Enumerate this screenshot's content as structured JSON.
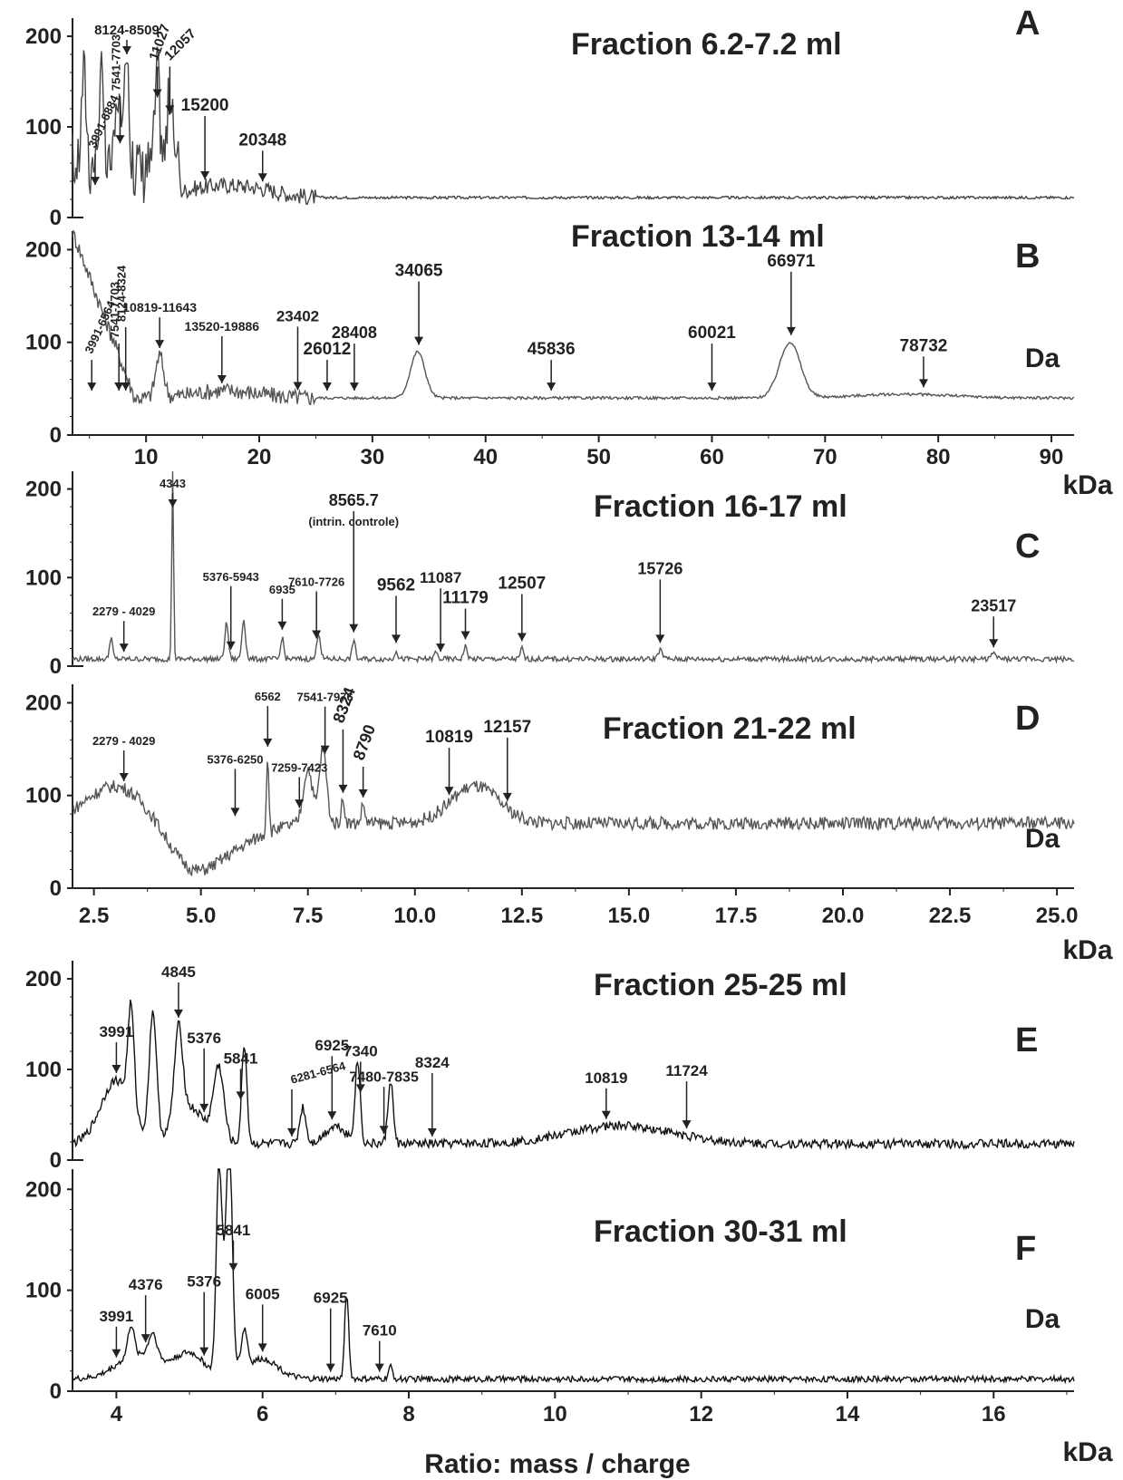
{
  "x_label": "Ratio: mass / charge",
  "chart_data": [
    {
      "type": "line",
      "panel": "A",
      "title": "Fraction  6.2-7.2 ml",
      "x_unit": "",
      "y_unit": "",
      "xlim": [
        3.5,
        92
      ],
      "ylim": [
        0,
        220
      ],
      "yticks": [
        "0",
        "100",
        "200"
      ],
      "xticks": [],
      "shared_x_with": "B",
      "baseline": 22,
      "series": [
        {
          "peaks": [
            [
              4.5,
              110,
              0.3
            ],
            [
              6.0,
              95,
              0.3
            ],
            [
              7.5,
              80,
              0.3
            ],
            [
              8.3,
              150,
              0.25
            ],
            [
              11.0,
              100,
              0.3
            ],
            [
              12.1,
              80,
              0.3
            ]
          ],
          "humps": [
            [
              16,
              12,
              4
            ],
            [
              20,
              6,
              3
            ]
          ]
        }
      ],
      "annotations": [
        {
          "text": "3991-6884",
          "x": 5.5,
          "rot": -65,
          "size": 13
        },
        {
          "text": "7541-7703",
          "x": 7.7,
          "rot": -90,
          "size": 13
        },
        {
          "text": "8124-8509",
          "x": 8.3,
          "rot": 0,
          "size": 15
        },
        {
          "text": "11027",
          "x": 11.0,
          "rot": -70,
          "size": 15
        },
        {
          "text": "12057",
          "x": 12.1,
          "rot": -45,
          "size": 15
        },
        {
          "text": "15200",
          "x": 15.2,
          "rot": 0,
          "size": 19
        },
        {
          "text": "20348",
          "x": 20.3,
          "rot": 0,
          "size": 19
        }
      ]
    },
    {
      "type": "line",
      "panel": "B",
      "title": "Fraction  13-14 ml",
      "x_unit": "Da",
      "y_unit": "kDa",
      "xlim": [
        3.5,
        92
      ],
      "ylim": [
        0,
        220
      ],
      "yticks": [
        "0",
        "100",
        "200"
      ],
      "xticks": [
        "10",
        "20",
        "30",
        "40",
        "50",
        "60",
        "70",
        "80",
        "90"
      ],
      "baseline": 40,
      "series": [
        {
          "peaks": [
            [
              11.2,
              45,
              0.5
            ],
            [
              34.0,
              50,
              0.9
            ],
            [
              66.9,
              60,
              1.3
            ]
          ],
          "humps": [
            [
              17,
              8,
              4
            ],
            [
              77,
              4,
              6
            ]
          ]
        }
      ],
      "annotations": [
        {
          "text": "3991-6564",
          "x": 5.2,
          "rot": -65,
          "size": 13
        },
        {
          "text": "7541-7703",
          "x": 7.6,
          "rot": -90,
          "size": 13
        },
        {
          "text": "8124-8324",
          "x": 8.2,
          "rot": -90,
          "size": 13
        },
        {
          "text": "10819-11643",
          "x": 11.2,
          "rot": 0,
          "size": 14
        },
        {
          "text": "13520-19886",
          "x": 16.7,
          "rot": 0,
          "size": 14
        },
        {
          "text": "23402",
          "x": 23.4,
          "rot": 0,
          "size": 17
        },
        {
          "text": "26012",
          "x": 26.0,
          "rot": 0,
          "size": 19
        },
        {
          "text": "28408",
          "x": 28.4,
          "rot": 0,
          "size": 18
        },
        {
          "text": "34065",
          "x": 34.1,
          "rot": 0,
          "size": 19
        },
        {
          "text": "45836",
          "x": 45.8,
          "rot": 0,
          "size": 19
        },
        {
          "text": "60021",
          "x": 60.0,
          "rot": 0,
          "size": 19
        },
        {
          "text": "66971",
          "x": 67.0,
          "rot": 0,
          "size": 19
        },
        {
          "text": "78732",
          "x": 78.7,
          "rot": 0,
          "size": 19
        }
      ]
    },
    {
      "type": "line",
      "panel": "C",
      "title": "Fraction  16-17 ml",
      "x_unit": "",
      "y_unit": "",
      "xlim": [
        2.0,
        25.4
      ],
      "ylim": [
        0,
        220
      ],
      "yticks": [
        "0",
        "100",
        "200"
      ],
      "xticks": [],
      "shared_x_with": "D",
      "baseline": 8,
      "series": [
        {
          "peaks": [
            [
              4.34,
              215,
              0.03
            ],
            [
              2.9,
              25,
              0.05
            ],
            [
              5.6,
              40,
              0.06
            ],
            [
              6.0,
              45,
              0.06
            ],
            [
              6.9,
              25,
              0.05
            ],
            [
              7.75,
              30,
              0.06
            ],
            [
              8.57,
              22,
              0.05
            ],
            [
              9.56,
              10,
              0.05
            ],
            [
              10.49,
              8,
              0.05
            ],
            [
              11.18,
              14,
              0.06
            ],
            [
              12.5,
              12,
              0.05
            ],
            [
              15.73,
              10,
              0.08
            ],
            [
              23.52,
              5,
              0.1
            ]
          ],
          "humps": []
        }
      ],
      "annotations": [
        {
          "text": "2279  - 4029",
          "x": 3.2,
          "rot": 0,
          "size": 13
        },
        {
          "text": "4343",
          "x": 4.34,
          "rot": 0,
          "size": 13
        },
        {
          "text": "5376-5943",
          "x": 5.7,
          "rot": 0,
          "size": 13
        },
        {
          "text": "6935",
          "x": 6.9,
          "rot": 0,
          "size": 13
        },
        {
          "text": "7610-7726",
          "x": 7.7,
          "rot": 0,
          "size": 13
        },
        {
          "text": "8565.7",
          "x": 8.57,
          "rot": 0,
          "size": 18
        },
        {
          "text": "(intrin. controle)",
          "x": 8.57,
          "rot": 0,
          "size": 13
        },
        {
          "text": "9562",
          "x": 9.56,
          "rot": 0,
          "size": 19
        },
        {
          "text": "11087",
          "x": 10.6,
          "rot": 0,
          "size": 17
        },
        {
          "text": "11179",
          "x": 11.18,
          "rot": 0,
          "size": 19
        },
        {
          "text": "12507",
          "x": 12.5,
          "rot": 0,
          "size": 19
        },
        {
          "text": "15726",
          "x": 15.73,
          "rot": 0,
          "size": 18
        },
        {
          "text": "23517",
          "x": 23.52,
          "rot": 0,
          "size": 18
        }
      ]
    },
    {
      "type": "line",
      "panel": "D",
      "title": "Fraction  21-22 ml",
      "x_unit": "Da",
      "y_unit": "kDa",
      "xlim": [
        2.0,
        25.4
      ],
      "ylim": [
        0,
        220
      ],
      "yticks": [
        "0",
        "100",
        "200"
      ],
      "xticks": [
        "2.5",
        "5.0",
        "7.5",
        "10.0",
        "12.5",
        "15.0",
        "17.5",
        "20.0",
        "22.5",
        "25.0"
      ],
      "baseline": 70,
      "series": [
        {
          "peaks": [
            [
              6.56,
              85,
              0.04
            ],
            [
              7.5,
              60,
              0.15
            ],
            [
              7.85,
              80,
              0.12
            ],
            [
              8.32,
              25,
              0.06
            ],
            [
              8.79,
              20,
              0.06
            ]
          ],
          "humps": [
            [
              3.0,
              40,
              1.0
            ],
            [
              5.8,
              -20,
              0.9
            ],
            [
              4.8,
              -45,
              0.8
            ],
            [
              11.4,
              40,
              0.8
            ]
          ]
        }
      ],
      "annotations": [
        {
          "text": "2279  - 4029",
          "x": 3.2,
          "rot": 0,
          "size": 13
        },
        {
          "text": "5376-6250",
          "x": 5.8,
          "rot": 0,
          "size": 13
        },
        {
          "text": "6562",
          "x": 6.56,
          "rot": 0,
          "size": 13
        },
        {
          "text": "7259-7423",
          "x": 7.3,
          "rot": 0,
          "size": 13
        },
        {
          "text": "7541-7976",
          "x": 7.9,
          "rot": 0,
          "size": 13
        },
        {
          "text": "8324",
          "x": 8.32,
          "rot": -70,
          "size": 18
        },
        {
          "text": "8790",
          "x": 8.79,
          "rot": -70,
          "size": 18
        },
        {
          "text": "10819",
          "x": 10.8,
          "rot": 0,
          "size": 19
        },
        {
          "text": "12157",
          "x": 12.16,
          "rot": 0,
          "size": 19
        }
      ]
    },
    {
      "type": "line",
      "panel": "E",
      "title": "Fraction  25-25 ml",
      "x_unit": "",
      "y_unit": "",
      "xlim": [
        3.4,
        17.1
      ],
      "ylim": [
        0,
        220
      ],
      "yticks": [
        "0",
        "100",
        "200"
      ],
      "xticks": [],
      "shared_x_with": "F",
      "baseline": 18,
      "series": [
        {
          "peaks": [
            [
              4.2,
              110,
              0.06
            ],
            [
              4.5,
              140,
              0.07
            ],
            [
              4.85,
              100,
              0.08
            ],
            [
              5.75,
              110,
              0.05
            ],
            [
              5.4,
              80,
              0.1
            ],
            [
              6.55,
              40,
              0.06
            ],
            [
              7.3,
              90,
              0.05
            ],
            [
              7.75,
              70,
              0.05
            ]
          ],
          "humps": [
            [
              4.0,
              70,
              0.3
            ],
            [
              5.0,
              40,
              0.3
            ],
            [
              10.9,
              20,
              1.0
            ],
            [
              7.0,
              20,
              0.2
            ]
          ]
        }
      ],
      "annotations": [
        {
          "text": "3991",
          "x": 4.0,
          "rot": 0,
          "size": 17
        },
        {
          "text": "4845",
          "x": 4.85,
          "rot": 0,
          "size": 17
        },
        {
          "text": "5376",
          "x": 5.2,
          "rot": 0,
          "size": 17
        },
        {
          "text": "5841",
          "x": 5.7,
          "rot": 0,
          "size": 17
        },
        {
          "text": "6281-6564",
          "x": 6.4,
          "rot": -15,
          "size": 13
        },
        {
          "text": "6925",
          "x": 6.95,
          "rot": 0,
          "size": 17
        },
        {
          "text": "7340",
          "x": 7.34,
          "rot": 0,
          "size": 17
        },
        {
          "text": "7480-7835",
          "x": 7.66,
          "rot": 0,
          "size": 16
        },
        {
          "text": "8324",
          "x": 8.32,
          "rot": 0,
          "size": 17
        },
        {
          "text": "10819",
          "x": 10.7,
          "rot": 0,
          "size": 17
        },
        {
          "text": "11724",
          "x": 11.8,
          "rot": 0,
          "size": 17
        }
      ]
    },
    {
      "type": "line",
      "panel": "F",
      "title": "Fraction  30-31 ml",
      "x_unit": "Da",
      "y_unit": "kDa",
      "xlim": [
        3.4,
        17.1
      ],
      "ylim": [
        0,
        220
      ],
      "yticks": [
        "0",
        "100",
        "200"
      ],
      "xticks": [
        "4",
        "6",
        "8",
        "10",
        "12",
        "14",
        "16"
      ],
      "baseline": 12,
      "series": [
        {
          "peaks": [
            [
              4.2,
              30,
              0.06
            ],
            [
              4.5,
              25,
              0.08
            ],
            [
              5.4,
              170,
              0.05
            ],
            [
              5.55,
              150,
              0.05
            ],
            [
              5.5,
              110,
              0.1
            ],
            [
              5.75,
              40,
              0.06
            ],
            [
              7.15,
              85,
              0.04
            ],
            [
              7.75,
              12,
              0.04
            ]
          ],
          "humps": [
            [
              4.3,
              25,
              0.4
            ],
            [
              5.0,
              25,
              0.3
            ],
            [
              6.0,
              20,
              0.3
            ]
          ]
        }
      ],
      "annotations": [
        {
          "text": "3991",
          "x": 4.0,
          "rot": 0,
          "size": 17
        },
        {
          "text": "4376",
          "x": 4.4,
          "rot": 0,
          "size": 17
        },
        {
          "text": "5376",
          "x": 5.2,
          "rot": 0,
          "size": 17
        },
        {
          "text": "5841",
          "x": 5.6,
          "rot": 0,
          "size": 17
        },
        {
          "text": "6005",
          "x": 6.0,
          "rot": 0,
          "size": 17
        },
        {
          "text": "6925",
          "x": 6.93,
          "rot": 0,
          "size": 17
        },
        {
          "text": "7610",
          "x": 7.6,
          "rot": 0,
          "size": 17
        }
      ]
    }
  ]
}
